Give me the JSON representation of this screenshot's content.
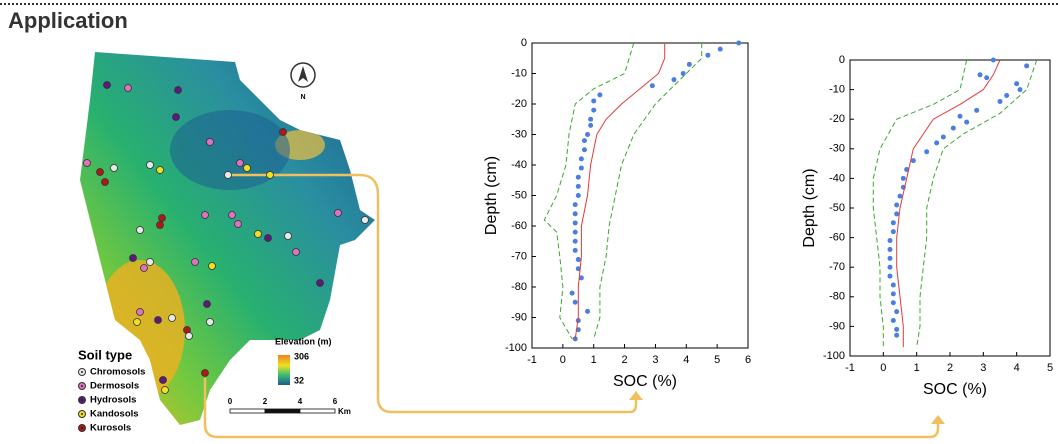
{
  "header": {
    "title": "Application"
  },
  "map": {
    "north": "N",
    "soil_legend": {
      "title": "Soil type",
      "items": [
        {
          "label": "Chromosols",
          "color": "#e8e8e8"
        },
        {
          "label": "Dermosols",
          "color": "#e070c0"
        },
        {
          "label": "Hydrosols",
          "color": "#5a1a80"
        },
        {
          "label": "Kandosols",
          "color": "#f0e020"
        },
        {
          "label": "Kurosols",
          "color": "#b01818"
        }
      ]
    },
    "elevation_legend": {
      "title": "Elevation (m)",
      "max": 306,
      "min": 32
    },
    "scale_bar": {
      "ticks": [
        0,
        2,
        4,
        6
      ],
      "unit": "Km"
    }
  },
  "chart_data": [
    {
      "type": "line",
      "xlabel": "SOC (%)",
      "ylabel": "Depth (cm)",
      "xlim": [
        -1,
        6
      ],
      "xticks": [
        -1,
        0,
        1,
        2,
        3,
        4,
        5,
        6
      ],
      "ylim": [
        -100,
        0
      ],
      "yticks": [
        0,
        -10,
        -20,
        -30,
        -40,
        -50,
        -60,
        -70,
        -80,
        -90,
        -100
      ],
      "series": [
        {
          "color": "#4a7fe0",
          "style": "markers",
          "x": [
            5.7,
            5.1,
            4.7,
            4.1,
            3.9,
            3.6,
            2.9,
            1.2,
            1.0,
            1.0,
            0.9,
            0.9,
            0.8,
            0.7,
            0.7,
            0.6,
            0.6,
            0.5,
            0.5,
            0.5,
            0.4,
            0.4,
            0.4,
            0.4,
            0.4,
            0.4,
            0.5,
            0.5,
            0.6,
            0.3,
            0.4,
            0.8,
            0.5,
            0.5,
            0.4
          ],
          "values": [
            0,
            -2,
            -4,
            -7,
            -10,
            -12,
            -14,
            -17,
            -19,
            -22,
            -25,
            -27,
            -30,
            -32,
            -35,
            -38,
            -41,
            -44,
            -47,
            -50,
            -53,
            -56,
            -59,
            -62,
            -65,
            -68,
            -71,
            -74,
            -77,
            -82,
            -85,
            -88,
            -91,
            -94,
            -97
          ]
        },
        {
          "color": "#e03a3a",
          "style": "solid",
          "x": [
            3.3,
            3.3,
            3.1,
            2.5,
            1.9,
            1.4,
            1.1,
            0.9,
            0.8,
            0.6,
            0.6,
            0.5,
            0.5,
            0.4
          ],
          "values": [
            0,
            -5,
            -10,
            -15,
            -20,
            -25,
            -30,
            -40,
            -50,
            -60,
            -70,
            -80,
            -90,
            -97
          ]
        },
        {
          "color": "#3aa82a",
          "style": "dashed",
          "x": [
            2.3,
            2.0,
            1.0,
            0.4,
            0.2,
            0.1,
            -0.2,
            -0.6,
            -0.2,
            -0.1,
            0.0,
            -0.1,
            0.3
          ],
          "values": [
            0,
            -10,
            -15,
            -20,
            -30,
            -40,
            -50,
            -58,
            -62,
            -70,
            -80,
            -90,
            -97
          ]
        },
        {
          "color": "#3aa82a",
          "style": "dashed",
          "x": [
            4.5,
            4.5,
            4.0,
            3.0,
            2.3,
            1.9,
            1.7,
            1.5,
            1.4,
            1.2,
            1.2,
            1.0
          ],
          "values": [
            0,
            -5,
            -10,
            -20,
            -30,
            -40,
            -50,
            -60,
            -70,
            -80,
            -90,
            -97
          ]
        }
      ]
    },
    {
      "type": "line",
      "xlabel": "SOC (%)",
      "ylabel": "Depth (cm)",
      "xlim": [
        -1,
        5
      ],
      "xticks": [
        -1,
        0,
        1,
        2,
        3,
        4,
        5
      ],
      "ylim": [
        -100,
        0
      ],
      "yticks": [
        0,
        -10,
        -20,
        -30,
        -40,
        -50,
        -60,
        -70,
        -80,
        -90,
        -100
      ],
      "series": [
        {
          "color": "#4a7fe0",
          "style": "markers",
          "x": [
            3.3,
            4.3,
            2.9,
            3.1,
            4.0,
            4.1,
            3.7,
            3.5,
            2.8,
            2.3,
            2.5,
            2.1,
            1.8,
            1.6,
            1.3,
            0.9,
            0.7,
            0.6,
            0.6,
            0.5,
            0.4,
            0.4,
            0.3,
            0.3,
            0.2,
            0.2,
            0.2,
            0.2,
            0.2,
            0.3,
            0.3,
            0.3,
            0.4,
            0.3,
            0.4,
            0.4
          ],
          "values": [
            0,
            -2,
            -5,
            -6,
            -8,
            -10,
            -12,
            -14,
            -17,
            -19,
            -21,
            -23,
            -26,
            -28,
            -31,
            -34,
            -37,
            -40,
            -43,
            -46,
            -49,
            -52,
            -55,
            -58,
            -61,
            -64,
            -67,
            -70,
            -73,
            -76,
            -79,
            -82,
            -85,
            -88,
            -91,
            -93
          ]
        },
        {
          "color": "#e03a3a",
          "style": "solid",
          "x": [
            3.5,
            3.3,
            3.0,
            2.3,
            1.5,
            1.2,
            0.9,
            0.7,
            0.5,
            0.4,
            0.4,
            0.5,
            0.6,
            0.6
          ],
          "values": [
            0,
            -5,
            -10,
            -15,
            -20,
            -25,
            -30,
            -40,
            -50,
            -60,
            -70,
            -80,
            -90,
            -97
          ]
        },
        {
          "color": "#3aa82a",
          "style": "dashed",
          "x": [
            2.5,
            2.3,
            1.5,
            0.4,
            -0.1,
            -0.3,
            -0.3,
            -0.2,
            -0.1,
            -0.1,
            0.0,
            0.0
          ],
          "values": [
            0,
            -10,
            -15,
            -20,
            -30,
            -40,
            -50,
            -60,
            -70,
            -80,
            -90,
            -97
          ]
        },
        {
          "color": "#3aa82a",
          "style": "dashed",
          "x": [
            4.6,
            4.3,
            3.5,
            2.4,
            1.8,
            1.5,
            1.3,
            1.3,
            1.2,
            1.1,
            1.1,
            1.0
          ],
          "values": [
            0,
            -10,
            -18,
            -25,
            -30,
            -40,
            -50,
            -60,
            -70,
            -80,
            -90,
            -97
          ]
        }
      ]
    }
  ]
}
